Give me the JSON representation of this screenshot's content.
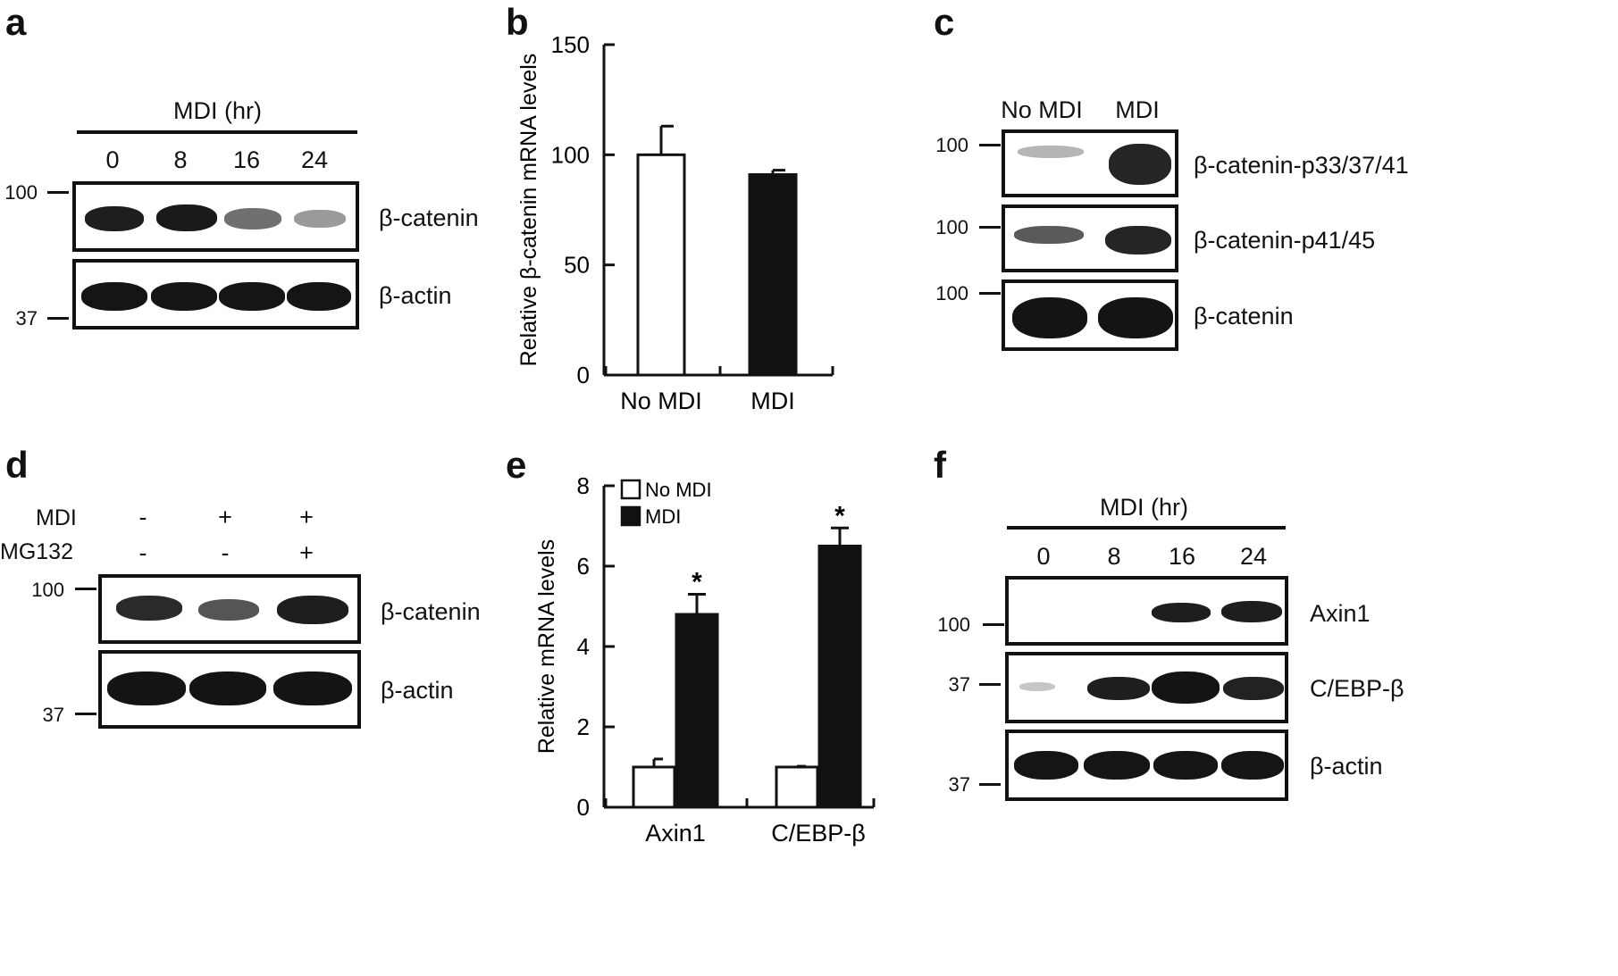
{
  "panel_a": {
    "letter": "a",
    "header": "MDI  (hr)",
    "lanes": [
      "0",
      "8",
      "16",
      "24"
    ],
    "mw_top": "100",
    "mw_bottom": "37",
    "blot_labels": [
      "β-catenin",
      "β-actin"
    ]
  },
  "panel_c": {
    "letter": "c",
    "lanes": [
      "No MDI",
      "MDI"
    ],
    "mw": [
      "100",
      "100",
      "100"
    ],
    "blot_labels": [
      "β-catenin-p33/37/41",
      "β-catenin-p41/45",
      "β-catenin"
    ]
  },
  "panel_d": {
    "letter": "d",
    "row1_label": "MDI",
    "row1_values": [
      "-",
      "+",
      "+"
    ],
    "row2_label": "MG132",
    "row2_values": [
      "-",
      "-",
      "+"
    ],
    "mw_top": "100",
    "mw_bottom": "37",
    "blot_labels": [
      "β-catenin",
      "β-actin"
    ]
  },
  "panel_f": {
    "letter": "f",
    "header": "MDI  (hr)",
    "lanes": [
      "0",
      "8",
      "16",
      "24"
    ],
    "mw": [
      "100",
      "37",
      "37"
    ],
    "blot_labels": [
      "Axin1",
      "C/EBP-β",
      "β-actin"
    ]
  },
  "chart_data": [
    {
      "panel": "b",
      "type": "bar",
      "categories": [
        "No MDI",
        "MDI"
      ],
      "series": [
        {
          "values": [
            100,
            91
          ],
          "errors": [
            13,
            2
          ],
          "colors": [
            "#ffffff",
            "#111111"
          ]
        }
      ],
      "ylabel": "Relative β-catenin mRNA  levels",
      "ylim": [
        0,
        150
      ],
      "yticks": [
        "0",
        "50",
        "100",
        "150"
      ]
    },
    {
      "panel": "e",
      "type": "bar",
      "categories": [
        "Axin1",
        "C/EBP-β"
      ],
      "series": [
        {
          "name": "No MDI",
          "values": [
            1.0,
            1.0
          ],
          "errors": [
            0.2,
            0.02
          ],
          "color": "#ffffff"
        },
        {
          "name": "MDI",
          "values": [
            4.8,
            6.5
          ],
          "errors": [
            0.5,
            0.45
          ],
          "color": "#111111"
        }
      ],
      "annotations": [
        "*",
        "*"
      ],
      "ylabel": "Relative mRNA levels",
      "ylim": [
        0,
        8
      ],
      "yticks": [
        "0",
        "2",
        "4",
        "6",
        "8"
      ],
      "legend": "top-left"
    }
  ]
}
